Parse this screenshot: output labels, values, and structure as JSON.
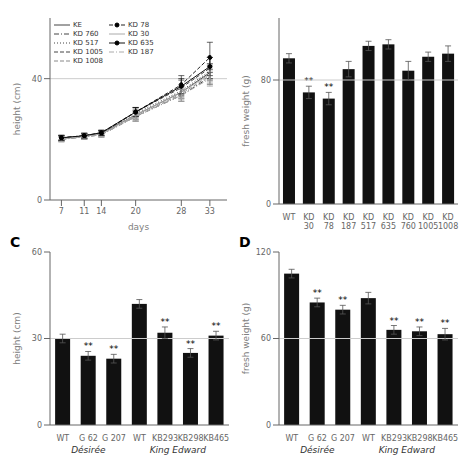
{
  "chart_data": [
    {
      "type": "line",
      "xlabel": "days",
      "ylabel": "height (cm)",
      "x": [
        7,
        11,
        14,
        20,
        28,
        33
      ],
      "xlim": [
        5,
        36
      ],
      "xticks": [
        7,
        11,
        14,
        20,
        28,
        33
      ],
      "ylim": [
        0,
        60
      ],
      "yticks": [
        0,
        40
      ],
      "hline": 40,
      "legend": "upper left",
      "series": [
        {
          "name": "KE",
          "color": "#444444",
          "line_style": "solid",
          "values": [
            20.5,
            21.0,
            22.0,
            28.0,
            35.5,
            42.0
          ],
          "errors": [
            0.8,
            0.8,
            0.8,
            1.5,
            2.0,
            2.5
          ]
        },
        {
          "name": "KD 760",
          "color": "#444444",
          "line_style": "dashdot",
          "values": [
            20.0,
            20.8,
            21.5,
            27.5,
            34.5,
            40.5
          ],
          "errors": [
            0.8,
            0.8,
            0.8,
            1.5,
            2.0,
            2.5
          ]
        },
        {
          "name": "KD 517",
          "color": "#444444",
          "line_style": "dotted",
          "values": [
            20.3,
            21.0,
            22.0,
            28.5,
            36.0,
            42.5
          ],
          "errors": [
            0.8,
            0.8,
            0.8,
            1.5,
            2.0,
            2.5
          ]
        },
        {
          "name": "KD 1005",
          "color": "#444444",
          "line_style": "dashed",
          "values": [
            20.5,
            21.2,
            22.2,
            29.0,
            37.0,
            43.5
          ],
          "errors": [
            0.8,
            0.8,
            0.8,
            1.5,
            2.5,
            3.5
          ]
        },
        {
          "name": "KD 1008",
          "color": "#888888",
          "line_style": "dashed",
          "values": [
            20.2,
            21.0,
            21.8,
            27.5,
            35.0,
            41.0
          ],
          "errors": [
            0.8,
            0.8,
            0.8,
            1.5,
            2.0,
            2.5
          ]
        },
        {
          "name": "KD 78",
          "color": "#222222",
          "line_style": "dashed",
          "marker": "circle",
          "values": [
            20.5,
            21.2,
            22.0,
            29.0,
            38.0,
            47.0
          ],
          "errors": [
            0.8,
            0.8,
            0.8,
            1.5,
            3.0,
            5.0
          ]
        },
        {
          "name": "KD 30",
          "color": "#aaaaaa",
          "line_style": "solid",
          "values": [
            20.2,
            21.0,
            21.8,
            28.0,
            35.5,
            41.5
          ],
          "errors": [
            0.8,
            0.8,
            0.8,
            1.5,
            2.0,
            2.5
          ]
        },
        {
          "name": "KD 635",
          "color": "#111111",
          "line_style": "solid",
          "marker": "circle",
          "values": [
            20.5,
            21.2,
            22.2,
            29.0,
            37.5,
            44.0
          ],
          "errors": [
            0.8,
            0.8,
            0.8,
            1.5,
            2.5,
            3.0
          ]
        },
        {
          "name": "KD 187",
          "color": "#aaaaaa",
          "line_style": "dashdot",
          "values": [
            20.0,
            20.8,
            21.5,
            27.5,
            34.5,
            40.0
          ],
          "errors": [
            0.8,
            0.8,
            0.8,
            1.5,
            2.0,
            2.5
          ]
        }
      ]
    },
    {
      "type": "bar",
      "ylabel": "fresh weight (g)",
      "categories": [
        "WT",
        "KD\n30",
        "KD\n78",
        "KD\n187",
        "KD\n517",
        "KD\n635",
        "KD\n760",
        "KD\n1005",
        "KD\n1008"
      ],
      "values": [
        94,
        72,
        68,
        87,
        102,
        103,
        86,
        95,
        97
      ],
      "errors": [
        3,
        4,
        4,
        5,
        3,
        3,
        6,
        3,
        5
      ],
      "annotations": [
        null,
        "**",
        "**",
        null,
        null,
        null,
        null,
        null,
        null
      ],
      "color": "#111111",
      "ylim": [
        0,
        120
      ],
      "yticks": [
        0,
        80
      ],
      "hline": 80
    },
    {
      "type": "bar",
      "title": "C",
      "ylabel": "height (cm)",
      "categories": [
        "WT",
        "G 62",
        "G 207",
        "WT",
        "KB293",
        "KB298",
        "KB465"
      ],
      "values": [
        30,
        24,
        23,
        42,
        32,
        25,
        31
      ],
      "errors": [
        1.5,
        1.5,
        1.5,
        1.5,
        2.0,
        1.5,
        1.5
      ],
      "annotations": [
        null,
        "**",
        "**",
        null,
        "**",
        "**",
        "**"
      ],
      "groups": [
        {
          "name": "Désirée",
          "size": 3
        },
        {
          "name": "King Edward",
          "size": 4
        }
      ],
      "color": "#111111",
      "ylim": [
        0,
        60
      ],
      "yticks": [
        0,
        30,
        60
      ],
      "hline": 30
    },
    {
      "type": "bar",
      "title": "D",
      "ylabel": "fresh weight (g)",
      "categories": [
        "WT",
        "G 62",
        "G 207",
        "WT",
        "KB293",
        "KB298",
        "KB465"
      ],
      "values": [
        105,
        85,
        80,
        88,
        66,
        65,
        63
      ],
      "errors": [
        3,
        3,
        3,
        4,
        3,
        3,
        4
      ],
      "annotations": [
        null,
        "**",
        "**",
        null,
        "**",
        "**",
        "**"
      ],
      "groups": [
        {
          "name": "Désirée",
          "size": 3
        },
        {
          "name": "King Edward",
          "size": 4
        }
      ],
      "color": "#111111",
      "ylim": [
        0,
        120
      ],
      "yticks": [
        0,
        60,
        120
      ],
      "hline": 60
    }
  ]
}
